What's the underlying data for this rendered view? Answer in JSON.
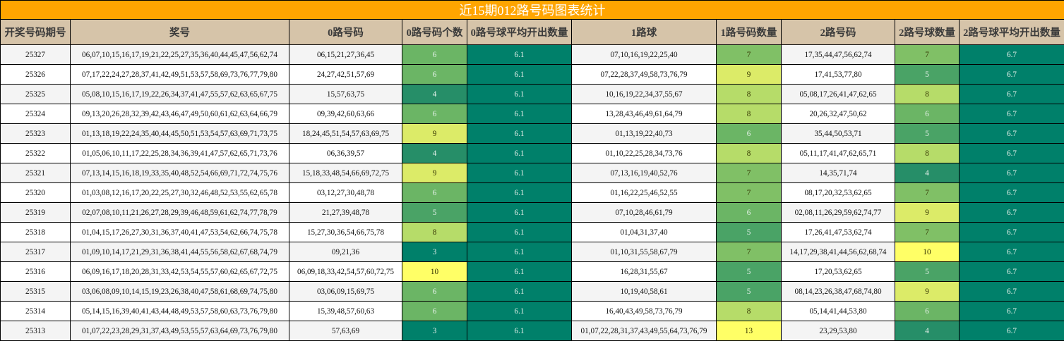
{
  "title": "近15期012路号码图表统计",
  "columns": [
    "开奖号码期号",
    "奖号",
    "0路号码",
    "0路号码个数",
    "0路号球平均开出数量",
    "1路球",
    "1路号码数量",
    "2路号码",
    "2路号球数量",
    "2路号球平均开出数量"
  ],
  "heat_colors": {
    "3": "#00806A",
    "4": "#268E68",
    "5": "#4AA366",
    "6": "#6BB565",
    "7": "#80C066",
    "8": "#B6DC69",
    "9": "#DCEB68",
    "10": "#FFFF66",
    "13": "#FFFF66",
    "avg": "#00806A"
  },
  "rows": [
    {
      "issue": "25327",
      "numbers": "06,07,10,15,16,17,19,21,22,25,27,35,36,40,44,45,47,56,62,74",
      "r0": "06,15,21,27,36,45",
      "r0_count": "6",
      "r0_avg": "6.1",
      "r1": "07,10,16,19,22,25,40",
      "r1_count": "7",
      "r2": "17,35,44,47,56,62,74",
      "r2_count": "7",
      "r2_avg": "6.7"
    },
    {
      "issue": "25326",
      "numbers": "07,17,22,24,27,28,37,41,42,49,51,53,57,58,69,73,76,77,79,80",
      "r0": "24,27,42,51,57,69",
      "r0_count": "6",
      "r0_avg": "6.1",
      "r1": "07,22,28,37,49,58,73,76,79",
      "r1_count": "9",
      "r2": "17,41,53,77,80",
      "r2_count": "5",
      "r2_avg": "6.7"
    },
    {
      "issue": "25325",
      "numbers": "05,08,10,15,16,17,19,22,26,34,37,41,47,55,57,62,63,65,67,75",
      "r0": "15,57,63,75",
      "r0_count": "4",
      "r0_avg": "6.1",
      "r1": "10,16,19,22,34,37,55,67",
      "r1_count": "8",
      "r2": "05,08,17,26,41,47,62,65",
      "r2_count": "8",
      "r2_avg": "6.7"
    },
    {
      "issue": "25324",
      "numbers": "09,13,20,26,28,32,39,42,43,46,47,49,50,60,61,62,63,64,66,79",
      "r0": "09,39,42,60,63,66",
      "r0_count": "6",
      "r0_avg": "6.1",
      "r1": "13,28,43,46,49,61,64,79",
      "r1_count": "8",
      "r2": "20,26,32,47,50,62",
      "r2_count": "6",
      "r2_avg": "6.7"
    },
    {
      "issue": "25323",
      "numbers": "01,13,18,19,22,24,35,40,44,45,50,51,53,54,57,63,69,71,73,75",
      "r0": "18,24,45,51,54,57,63,69,75",
      "r0_count": "9",
      "r0_avg": "6.1",
      "r1": "01,13,19,22,40,73",
      "r1_count": "6",
      "r2": "35,44,50,53,71",
      "r2_count": "5",
      "r2_avg": "6.7"
    },
    {
      "issue": "25322",
      "numbers": "01,05,06,10,11,17,22,25,28,34,36,39,41,47,57,62,65,71,73,76",
      "r0": "06,36,39,57",
      "r0_count": "4",
      "r0_avg": "6.1",
      "r1": "01,10,22,25,28,34,73,76",
      "r1_count": "8",
      "r2": "05,11,17,41,47,62,65,71",
      "r2_count": "8",
      "r2_avg": "6.7"
    },
    {
      "issue": "25321",
      "numbers": "07,13,14,15,16,18,19,33,35,40,48,52,54,66,69,71,72,74,75,76",
      "r0": "15,18,33,48,54,66,69,72,75",
      "r0_count": "9",
      "r0_avg": "6.1",
      "r1": "07,13,16,19,40,52,76",
      "r1_count": "7",
      "r2": "14,35,71,74",
      "r2_count": "4",
      "r2_avg": "6.7"
    },
    {
      "issue": "25320",
      "numbers": "01,03,08,12,16,17,20,22,25,27,30,32,46,48,52,53,55,62,65,78",
      "r0": "03,12,27,30,48,78",
      "r0_count": "6",
      "r0_avg": "6.1",
      "r1": "01,16,22,25,46,52,55",
      "r1_count": "7",
      "r2": "08,17,20,32,53,62,65",
      "r2_count": "7",
      "r2_avg": "6.7"
    },
    {
      "issue": "25319",
      "numbers": "02,07,08,10,11,21,26,27,28,29,39,46,48,59,61,62,74,77,78,79",
      "r0": "21,27,39,48,78",
      "r0_count": "5",
      "r0_avg": "6.1",
      "r1": "07,10,28,46,61,79",
      "r1_count": "6",
      "r2": "02,08,11,26,29,59,62,74,77",
      "r2_count": "9",
      "r2_avg": "6.7"
    },
    {
      "issue": "25318",
      "numbers": "01,04,15,17,26,27,30,31,36,37,40,41,47,53,54,62,66,74,75,78",
      "r0": "15,27,30,36,54,66,75,78",
      "r0_count": "8",
      "r0_avg": "6.1",
      "r1": "01,04,31,37,40",
      "r1_count": "5",
      "r2": "17,26,41,47,53,62,74",
      "r2_count": "7",
      "r2_avg": "6.7"
    },
    {
      "issue": "25317",
      "numbers": "01,09,10,14,17,21,29,31,36,38,41,44,55,56,58,62,67,68,74,79",
      "r0": "09,21,36",
      "r0_count": "3",
      "r0_avg": "6.1",
      "r1": "01,10,31,55,58,67,79",
      "r1_count": "7",
      "r2": "14,17,29,38,41,44,56,62,68,74",
      "r2_count": "10",
      "r2_avg": "6.7"
    },
    {
      "issue": "25316",
      "numbers": "06,09,16,17,18,20,28,31,33,42,53,54,55,57,60,62,65,67,72,75",
      "r0": "06,09,18,33,42,54,57,60,72,75",
      "r0_count": "10",
      "r0_avg": "6.1",
      "r1": "16,28,31,55,67",
      "r1_count": "5",
      "r2": "17,20,53,62,65",
      "r2_count": "5",
      "r2_avg": "6.7"
    },
    {
      "issue": "25315",
      "numbers": "03,06,08,09,10,14,15,19,23,26,38,40,47,58,61,68,69,74,75,80",
      "r0": "03,06,09,15,69,75",
      "r0_count": "6",
      "r0_avg": "6.1",
      "r1": "10,19,40,58,61",
      "r1_count": "5",
      "r2": "08,14,23,26,38,47,68,74,80",
      "r2_count": "9",
      "r2_avg": "6.7"
    },
    {
      "issue": "25314",
      "numbers": "05,14,15,16,39,40,41,43,44,48,49,53,57,58,60,63,73,76,79,80",
      "r0": "15,39,48,57,60,63",
      "r0_count": "6",
      "r0_avg": "6.1",
      "r1": "16,40,43,49,58,73,76,79",
      "r1_count": "8",
      "r2": "05,14,41,44,53,80",
      "r2_count": "6",
      "r2_avg": "6.7"
    },
    {
      "issue": "25313",
      "numbers": "01,07,22,23,28,29,31,37,43,49,53,55,57,63,64,69,73,76,79,80",
      "r0": "57,63,69",
      "r0_count": "3",
      "r0_avg": "6.1",
      "r1": "01,07,22,28,31,37,43,49,55,64,73,76,79",
      "r1_count": "13",
      "r2": "23,29,53,80",
      "r2_count": "4",
      "r2_avg": "6.7"
    }
  ]
}
